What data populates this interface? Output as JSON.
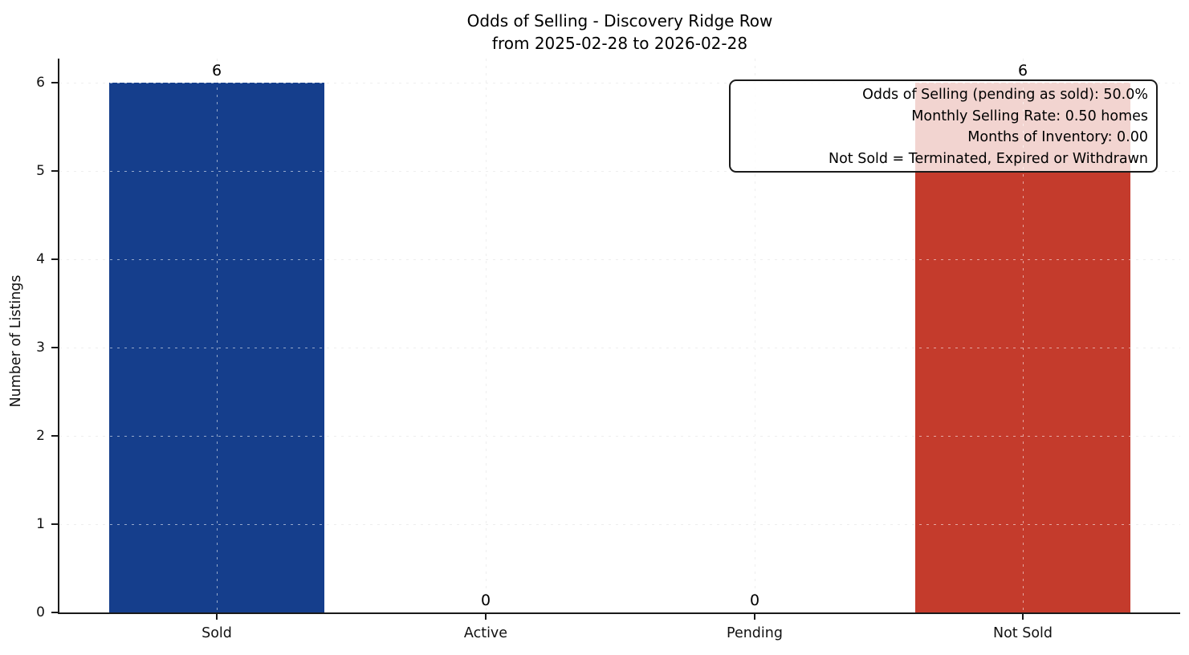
{
  "chart_data": {
    "type": "bar",
    "title": "Odds of Selling - Discovery Ridge Row",
    "subtitle": "from 2025-02-28 to 2026-02-28",
    "xlabel": "",
    "ylabel": "Number of Listings",
    "categories": [
      "Sold",
      "Active",
      "Pending",
      "Not Sold"
    ],
    "values": [
      6,
      0,
      0,
      6
    ],
    "bar_value_labels": [
      "6",
      "0",
      "0",
      "6"
    ],
    "bar_colors": [
      "#153e8c",
      "#153e8c",
      "#153e8c",
      "#c43b2c"
    ],
    "yticks": [
      0,
      1,
      2,
      3,
      4,
      5,
      6
    ],
    "ylim": [
      0,
      6.27
    ],
    "legend": "none",
    "grid": {
      "horizontal": true,
      "vertical": true,
      "style": "dashed",
      "color": "#d9d9d9"
    },
    "colors": {
      "sold_bar": "#153e8c",
      "not_sold_bar": "#c43b2c",
      "axis": "#1a1a1a",
      "gridline": "#d9d9d9",
      "annotation_border": "#1a1a1a"
    },
    "annotation": {
      "position": "top-right",
      "lines": [
        "Odds of Selling (pending as sold): 50.0%",
        "Monthly Selling Rate: 0.50 homes",
        "Months of Inventory: 0.00",
        "Not Sold = Terminated, Expired or Withdrawn"
      ]
    }
  }
}
